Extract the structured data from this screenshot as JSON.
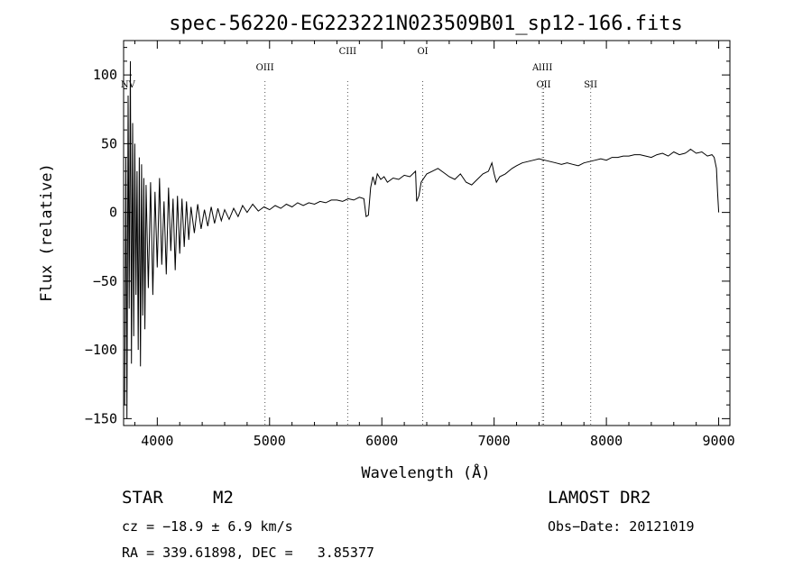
{
  "chart_data": {
    "type": "line",
    "title": "spec-56220-EG223221N023509B01_sp12-166.fits",
    "xlabel": "Wavelength (Å)",
    "ylabel": "Flux (relative)",
    "xlim": [
      3700,
      9100
    ],
    "ylim": [
      -155,
      125
    ],
    "x_ticks": [
      4000,
      5000,
      6000,
      7000,
      8000,
      9000
    ],
    "y_ticks": [
      -150,
      -100,
      -50,
      0,
      50,
      100
    ],
    "grid": false,
    "series": [
      {
        "color": "#000000",
        "x": [
          3710,
          3720,
          3730,
          3740,
          3750,
          3760,
          3770,
          3780,
          3790,
          3800,
          3810,
          3820,
          3830,
          3840,
          3850,
          3860,
          3870,
          3880,
          3890,
          3900,
          3920,
          3940,
          3960,
          3980,
          4000,
          4020,
          4040,
          4060,
          4080,
          4100,
          4120,
          4140,
          4160,
          4180,
          4200,
          4220,
          4240,
          4260,
          4280,
          4300,
          4330,
          4360,
          4390,
          4420,
          4450,
          4480,
          4510,
          4540,
          4570,
          4600,
          4640,
          4680,
          4720,
          4760,
          4800,
          4850,
          4900,
          4950,
          5000,
          5050,
          5100,
          5150,
          5200,
          5250,
          5300,
          5350,
          5400,
          5450,
          5500,
          5550,
          5600,
          5650,
          5700,
          5750,
          5800,
          5840,
          5860,
          5880,
          5900,
          5920,
          5940,
          5960,
          5990,
          6020,
          6050,
          6100,
          6150,
          6200,
          6250,
          6300,
          6310,
          6330,
          6350,
          6400,
          6450,
          6500,
          6550,
          6600,
          6650,
          6700,
          6750,
          6800,
          6850,
          6900,
          6950,
          6980,
          7000,
          7020,
          7050,
          7100,
          7130,
          7160,
          7200,
          7250,
          7300,
          7350,
          7400,
          7450,
          7500,
          7550,
          7600,
          7650,
          7700,
          7750,
          7800,
          7850,
          7900,
          7950,
          8000,
          8050,
          8100,
          8150,
          8200,
          8250,
          8300,
          8350,
          8400,
          8450,
          8500,
          8550,
          8600,
          8650,
          8700,
          8720,
          8750,
          8800,
          8850,
          8900,
          8940,
          8960,
          8980,
          8990,
          9000
        ],
        "y": [
          -140,
          40,
          -150,
          85,
          -70,
          110,
          -110,
          65,
          -90,
          50,
          -60,
          30,
          -100,
          40,
          -112,
          35,
          -75,
          25,
          -85,
          20,
          -55,
          22,
          -60,
          15,
          -40,
          25,
          -38,
          8,
          -45,
          18,
          -28,
          10,
          -42,
          12,
          -30,
          10,
          -25,
          8,
          -20,
          4,
          -15,
          6,
          -12,
          2,
          -10,
          4,
          -8,
          3,
          -6,
          2,
          -5,
          3,
          -3,
          5,
          0,
          6,
          1,
          4,
          2,
          5,
          3,
          6,
          4,
          7,
          5,
          7,
          6,
          8,
          7,
          9,
          9,
          8,
          10,
          9,
          11,
          10,
          -3,
          -2,
          18,
          26,
          20,
          28,
          24,
          26,
          22,
          25,
          24,
          27,
          26,
          30,
          8,
          12,
          22,
          28,
          30,
          32,
          29,
          26,
          24,
          28,
          22,
          20,
          24,
          28,
          30,
          36,
          28,
          22,
          26,
          28,
          30,
          32,
          34,
          36,
          37,
          38,
          39,
          38,
          37,
          36,
          35,
          36,
          35,
          34,
          36,
          37,
          38,
          39,
          38,
          40,
          40,
          41,
          41,
          42,
          42,
          41,
          40,
          42,
          43,
          41,
          44,
          42,
          43,
          44,
          46,
          43,
          44,
          41,
          42,
          40,
          32,
          15,
          0
        ]
      }
    ],
    "annotations": [
      {
        "label": "NV",
        "x": 3739,
        "row": 1,
        "line": false
      },
      {
        "label": "OIII",
        "x": 4959,
        "row": 2,
        "line": true
      },
      {
        "label": "CIII",
        "x": 5696,
        "row": 3,
        "line": true
      },
      {
        "label": "OI",
        "x": 6364,
        "row": 3,
        "line": true
      },
      {
        "label": "AlIII",
        "x": 7430,
        "row": 2,
        "line": true
      },
      {
        "label": "OII",
        "x": 7441,
        "row": 1,
        "line": true
      },
      {
        "label": "SII",
        "x": 7860,
        "row": 1,
        "line": true
      }
    ]
  },
  "info": {
    "object_type": "STAR",
    "subclass": "M2",
    "cz": "cz = −18.9 ± 6.9 km/s",
    "coords": "RA = 339.61898, DEC =   3.85377",
    "survey": "LAMOST DR2",
    "obs_date": "Obs−Date: 20121019"
  }
}
